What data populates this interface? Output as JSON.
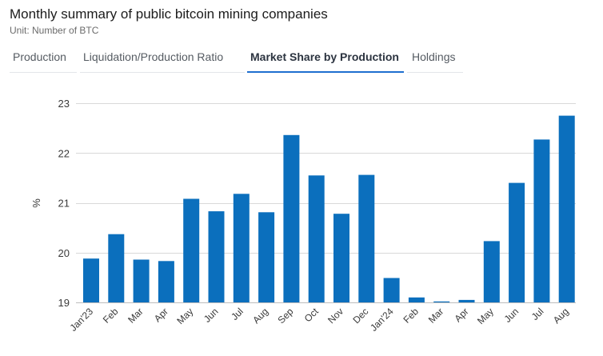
{
  "header": {
    "title": "Monthly summary of public bitcoin mining companies",
    "subtitle": "Unit: Number of BTC"
  },
  "tabs": [
    {
      "label": "Production",
      "active": false
    },
    {
      "label": "Liquidation/Production Ratio",
      "active": false
    },
    {
      "label": "Market Share by Production",
      "active": true
    },
    {
      "label": "Holdings",
      "active": false
    }
  ],
  "colors": {
    "bar": "#0b6fbd",
    "grid": "#d9d9d9",
    "active_tab_underline": "#1f6fd0"
  },
  "chart_data": {
    "type": "bar",
    "categories": [
      "Jan'23",
      "Feb",
      "Mar",
      "Apr",
      "May",
      "Jun",
      "Jul",
      "Aug",
      "Sep",
      "Oct",
      "Nov",
      "Dec",
      "Jan'24",
      "Feb",
      "Mar",
      "Apr",
      "May",
      "Jun",
      "Jul",
      "Aug"
    ],
    "values": [
      19.88,
      20.37,
      19.86,
      19.83,
      21.08,
      20.83,
      21.18,
      20.81,
      22.36,
      21.55,
      20.78,
      21.56,
      19.49,
      19.1,
      19.02,
      19.05,
      20.23,
      21.4,
      22.27,
      22.75
    ],
    "ylabel": "%",
    "ylim": [
      19,
      23
    ],
    "yticks": [
      19,
      20,
      21,
      22,
      23
    ],
    "grid": true
  }
}
